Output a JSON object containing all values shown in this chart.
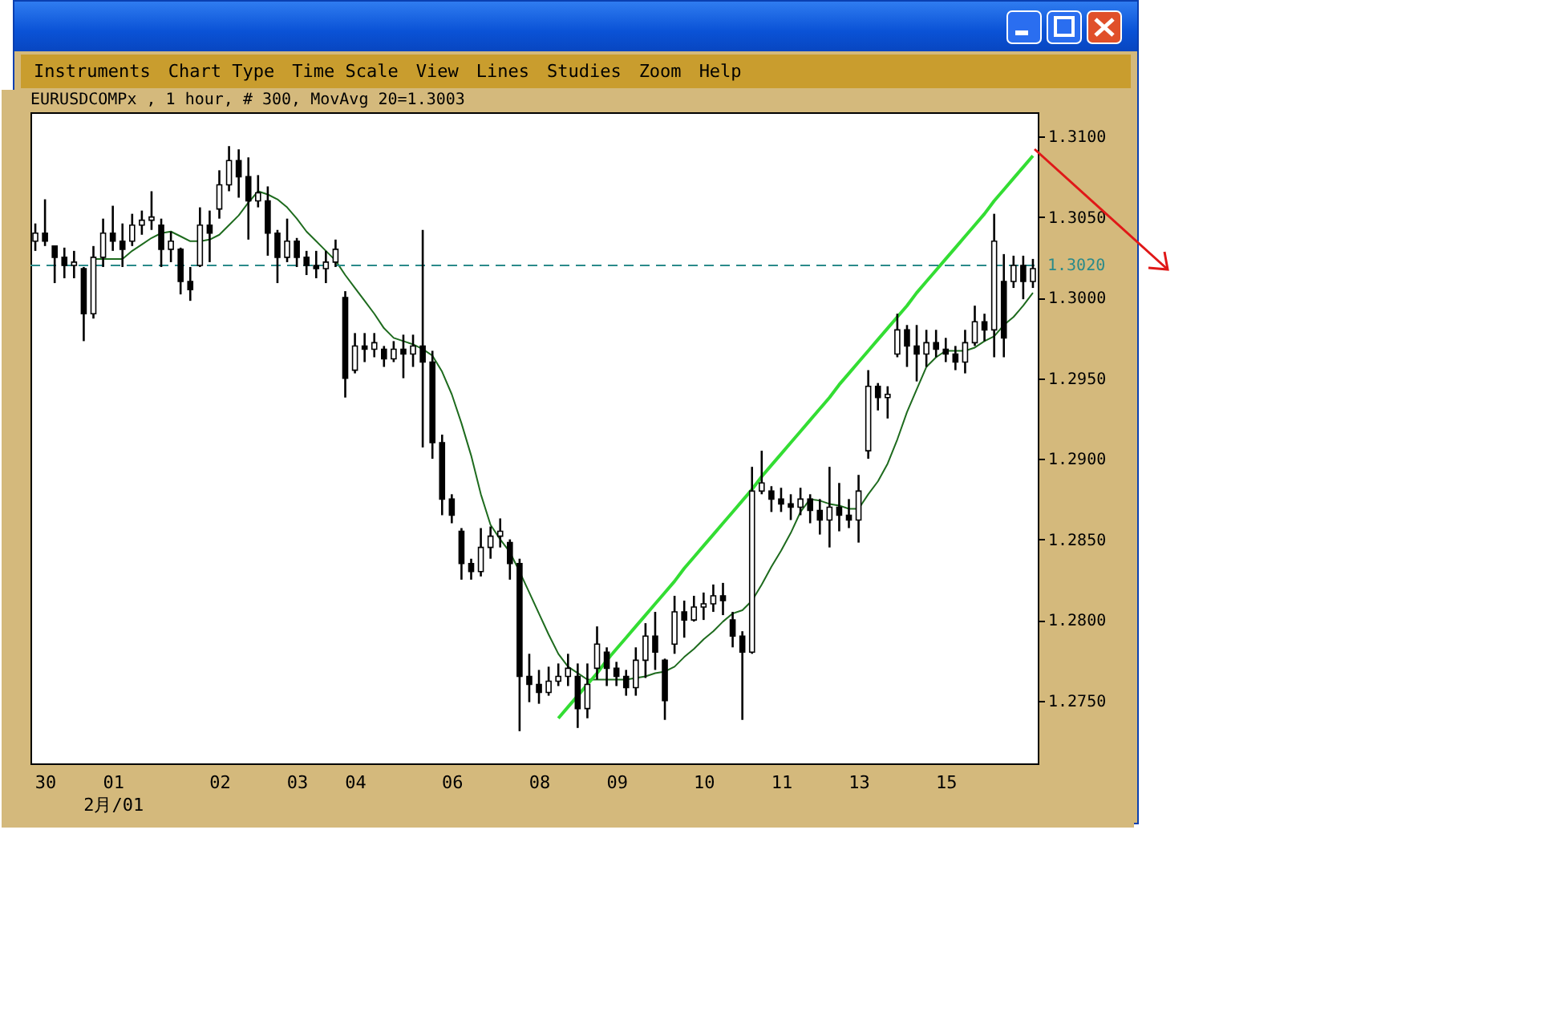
{
  "chart_data": {
    "type": "candlestick",
    "subtitle": "EURUSDCOMPx , 1 hour, # 300, MovAvg 20=1.3003",
    "annotations": [
      "Instruments",
      "Chart Type",
      "Time Scale",
      "View",
      "Lines",
      "Studies",
      "Zoom",
      "Help"
    ],
    "color": "#000000",
    "categories": [
      null,
      "30",
      null,
      null,
      null,
      null,
      null,
      null,
      "01\n2月/01",
      null,
      null,
      null,
      null,
      null,
      null,
      null,
      null,
      null,
      null,
      "02",
      null,
      null,
      null,
      null,
      null,
      null,
      null,
      "03",
      null,
      null,
      null,
      null,
      null,
      "04",
      null,
      null,
      null,
      null,
      null,
      null,
      null,
      null,
      null,
      "06",
      null,
      null,
      null,
      null,
      null,
      null,
      null,
      null,
      "08",
      null,
      null,
      null,
      null,
      null,
      null,
      null,
      "09",
      null,
      null,
      null,
      null,
      null,
      null,
      null,
      null,
      "10",
      null,
      null,
      null,
      null,
      null,
      null,
      null,
      "11",
      null,
      null,
      null,
      null,
      null,
      null,
      null,
      "13",
      null,
      null,
      null,
      null,
      null,
      null,
      null,
      null,
      "15",
      null,
      null,
      null,
      null,
      null,
      null,
      null,
      null,
      null
    ],
    "ohlc": [
      [
        1.3035,
        1.3046,
        1.3029,
        1.304
      ],
      [
        1.304,
        1.3061,
        1.3032,
        1.3035
      ],
      [
        1.3032,
        1.3032,
        1.3009,
        1.3025
      ],
      [
        1.3025,
        1.3031,
        1.3012,
        1.302
      ],
      [
        1.302,
        1.3029,
        1.3012,
        1.3022
      ],
      [
        1.3018,
        1.3019,
        1.2973,
        1.299
      ],
      [
        1.299,
        1.3032,
        1.2987,
        1.3025
      ],
      [
        1.3025,
        1.3049,
        1.3019,
        1.304
      ],
      [
        1.304,
        1.3057,
        1.3029,
        1.3035
      ],
      [
        1.3035,
        1.3046,
        1.3019,
        1.303
      ],
      [
        1.3035,
        1.3052,
        1.3032,
        1.3045
      ],
      [
        1.3045,
        1.3054,
        1.3039,
        1.3048
      ],
      [
        1.3048,
        1.3066,
        1.3042,
        1.305
      ],
      [
        1.3045,
        1.3049,
        1.3019,
        1.303
      ],
      [
        1.303,
        1.3041,
        1.3022,
        1.3035
      ],
      [
        1.303,
        1.3031,
        1.3002,
        1.301
      ],
      [
        1.301,
        1.3019,
        1.2998,
        1.3005
      ],
      [
        1.302,
        1.3056,
        1.3019,
        1.3045
      ],
      [
        1.3045,
        1.3054,
        1.3022,
        1.304
      ],
      [
        1.3055,
        1.3079,
        1.3049,
        1.307
      ],
      [
        1.307,
        1.3094,
        1.3066,
        1.3085
      ],
      [
        1.3085,
        1.3092,
        1.3062,
        1.3075
      ],
      [
        1.3075,
        1.3087,
        1.3036,
        1.306
      ],
      [
        1.306,
        1.3076,
        1.3056,
        1.3065
      ],
      [
        1.306,
        1.3069,
        1.3026,
        1.304
      ],
      [
        1.304,
        1.3042,
        1.3009,
        1.3025
      ],
      [
        1.3025,
        1.3049,
        1.3022,
        1.3035
      ],
      [
        1.3035,
        1.3037,
        1.3019,
        1.3025
      ],
      [
        1.3025,
        1.3029,
        1.3014,
        1.302
      ],
      [
        1.302,
        1.3029,
        1.3012,
        1.3018
      ],
      [
        1.3018,
        1.3029,
        1.3009,
        1.3022
      ],
      [
        1.3022,
        1.3036,
        1.3019,
        1.303
      ],
      [
        1.3,
        1.3004,
        1.2938,
        1.295
      ],
      [
        1.2955,
        1.2978,
        1.2953,
        1.297
      ],
      [
        1.297,
        1.2978,
        1.296,
        1.2968
      ],
      [
        1.2968,
        1.2978,
        1.2963,
        1.2972
      ],
      [
        1.2968,
        1.297,
        1.2957,
        1.2962
      ],
      [
        1.2962,
        1.2973,
        1.296,
        1.2968
      ],
      [
        1.2968,
        1.2977,
        1.295,
        1.2965
      ],
      [
        1.2965,
        1.2977,
        1.2957,
        1.297
      ],
      [
        1.297,
        1.3042,
        1.2907,
        1.296
      ],
      [
        1.296,
        1.2967,
        1.29,
        1.291
      ],
      [
        1.291,
        1.2915,
        1.2865,
        1.2875
      ],
      [
        1.2875,
        1.2878,
        1.286,
        1.2865
      ],
      [
        1.2855,
        1.2857,
        1.2825,
        1.2835
      ],
      [
        1.2835,
        1.2838,
        1.2825,
        1.283
      ],
      [
        1.283,
        1.2857,
        1.2827,
        1.2845
      ],
      [
        1.2845,
        1.2858,
        1.2838,
        1.2852
      ],
      [
        1.2852,
        1.2863,
        1.2845,
        1.2855
      ],
      [
        1.2848,
        1.285,
        1.2825,
        1.2835
      ],
      [
        1.2835,
        1.2838,
        1.2731,
        1.2765
      ],
      [
        1.2765,
        1.2779,
        1.2749,
        1.276
      ],
      [
        1.276,
        1.2769,
        1.2748,
        1.2755
      ],
      [
        1.2755,
        1.2771,
        1.2753,
        1.2762
      ],
      [
        1.2762,
        1.2773,
        1.2759,
        1.2765
      ],
      [
        1.2765,
        1.2779,
        1.2759,
        1.277
      ],
      [
        1.2765,
        1.2773,
        1.2733,
        1.2745
      ],
      [
        1.2745,
        1.2773,
        1.2739,
        1.276
      ],
      [
        1.277,
        1.2796,
        1.2763,
        1.2785
      ],
      [
        1.278,
        1.2783,
        1.2759,
        1.277
      ],
      [
        1.277,
        1.2774,
        1.2759,
        1.2765
      ],
      [
        1.2765,
        1.2769,
        1.2753,
        1.2758
      ],
      [
        1.2758,
        1.2783,
        1.2753,
        1.2775
      ],
      [
        1.2775,
        1.2798,
        1.2764,
        1.279
      ],
      [
        1.279,
        1.2805,
        1.2769,
        1.278
      ],
      [
        1.2775,
        1.2776,
        1.2738,
        1.275
      ],
      [
        1.2785,
        1.2815,
        1.2779,
        1.2805
      ],
      [
        1.2805,
        1.2812,
        1.2789,
        1.28
      ],
      [
        1.28,
        1.2815,
        1.2799,
        1.2808
      ],
      [
        1.2808,
        1.2817,
        1.28,
        1.281
      ],
      [
        1.281,
        1.2822,
        1.2805,
        1.2815
      ],
      [
        1.2815,
        1.2823,
        1.2803,
        1.2812
      ],
      [
        1.28,
        1.2805,
        1.2783,
        1.279
      ],
      [
        1.279,
        1.2793,
        1.2738,
        1.278
      ],
      [
        1.278,
        1.2895,
        1.2779,
        1.288
      ],
      [
        1.288,
        1.2905,
        1.2878,
        1.2885
      ],
      [
        1.288,
        1.2883,
        1.2867,
        1.2875
      ],
      [
        1.2875,
        1.2882,
        1.2867,
        1.2872
      ],
      [
        1.2872,
        1.2878,
        1.2862,
        1.287
      ],
      [
        1.287,
        1.2882,
        1.2865,
        1.2875
      ],
      [
        1.2875,
        1.2878,
        1.286,
        1.2868
      ],
      [
        1.2868,
        1.2875,
        1.2853,
        1.2862
      ],
      [
        1.2862,
        1.2895,
        1.2845,
        1.287
      ],
      [
        1.287,
        1.2885,
        1.2855,
        1.2865
      ],
      [
        1.2865,
        1.2875,
        1.2857,
        1.2862
      ],
      [
        1.2862,
        1.289,
        1.2848,
        1.288
      ],
      [
        1.2905,
        1.2955,
        1.29,
        1.2945
      ],
      [
        1.2945,
        1.2947,
        1.293,
        1.2938
      ],
      [
        1.2938,
        1.2945,
        1.2925,
        1.294
      ],
      [
        1.2965,
        1.299,
        1.2963,
        1.298
      ],
      [
        1.298,
        1.2983,
        1.2957,
        1.297
      ],
      [
        1.297,
        1.2983,
        1.2948,
        1.2965
      ],
      [
        1.2965,
        1.298,
        1.2957,
        1.2972
      ],
      [
        1.2972,
        1.298,
        1.2963,
        1.2968
      ],
      [
        1.2968,
        1.2975,
        1.296,
        1.2965
      ],
      [
        1.2965,
        1.297,
        1.2955,
        1.296
      ],
      [
        1.296,
        1.298,
        1.2953,
        1.2972
      ],
      [
        1.2972,
        1.2995,
        1.297,
        1.2985
      ],
      [
        1.2985,
        1.299,
        1.2973,
        1.298
      ],
      [
        1.298,
        1.3052,
        1.2963,
        1.3035
      ],
      [
        1.301,
        1.3027,
        1.2963,
        1.2975
      ],
      [
        1.301,
        1.3026,
        1.3006,
        1.302
      ],
      [
        1.302,
        1.3026,
        1.2999,
        1.301
      ],
      [
        1.301,
        1.3024,
        1.3006,
        1.3018
      ]
    ],
    "series": [
      {
        "type": "line",
        "color": "#1e6b1e",
        "values": [
          null,
          null,
          null,
          null,
          null,
          null,
          1.3024,
          1.3024,
          1.3024,
          1.3024,
          1.3029,
          1.3033,
          1.3037,
          1.304,
          1.3041,
          1.3038,
          1.3035,
          1.3035,
          1.3036,
          1.3039,
          1.3045,
          1.3051,
          1.3059,
          1.3066,
          1.3064,
          1.3061,
          1.3056,
          1.3049,
          1.3041,
          1.3035,
          1.3029,
          1.3023,
          1.3014,
          1.3006,
          1.2998,
          1.299,
          1.2981,
          1.2975,
          1.2973,
          1.2971,
          1.2968,
          1.2964,
          1.2954,
          1.294,
          1.2922,
          1.2902,
          1.2878,
          1.2859,
          1.285,
          1.2842,
          1.283,
          1.2817,
          1.2804,
          1.2791,
          1.2779,
          1.2771,
          1.2767,
          1.2763,
          1.2763,
          1.2763,
          1.2763,
          1.2763,
          1.2764,
          1.2765,
          1.2767,
          1.2768,
          1.2771,
          1.2777,
          1.2782,
          1.2788,
          1.2793,
          1.2799,
          1.2804,
          1.2806,
          1.2812,
          1.2822,
          1.2833,
          1.2843,
          1.2854,
          1.2867,
          1.2875,
          1.2874,
          1.2872,
          1.2871,
          1.2869,
          1.2869,
          1.2878,
          1.2886,
          1.2897,
          1.2912,
          1.2929,
          1.2943,
          1.2957,
          1.2963,
          1.2967,
          1.2967,
          1.2967,
          1.2969,
          1.2973,
          1.2976,
          1.2983,
          1.2988,
          1.2995,
          1.3003
        ]
      },
      {
        "type": "line",
        "color": "#33dd33",
        "values": [
          null,
          null,
          null,
          null,
          null,
          null,
          null,
          null,
          null,
          null,
          null,
          null,
          null,
          null,
          null,
          null,
          null,
          null,
          null,
          null,
          null,
          null,
          null,
          null,
          null,
          null,
          null,
          null,
          null,
          null,
          null,
          null,
          null,
          null,
          null,
          null,
          null,
          null,
          null,
          null,
          null,
          null,
          null,
          null,
          null,
          null,
          null,
          null,
          null,
          null,
          null,
          null,
          null,
          null,
          1.2739,
          1.2746,
          1.2753,
          1.276,
          1.2767,
          1.2775,
          1.2782,
          1.2789,
          1.2796,
          1.2803,
          1.281,
          1.2817,
          1.2824,
          1.2832,
          1.2839,
          1.2846,
          1.2853,
          1.286,
          1.2867,
          1.2874,
          1.2881,
          1.2889,
          1.2896,
          1.2903,
          1.291,
          1.2917,
          1.2924,
          1.2931,
          1.2938,
          1.2946,
          1.2953,
          1.296,
          1.2967,
          1.2974,
          1.2981,
          1.2988,
          1.2995,
          1.3003,
          1.301,
          1.3017,
          1.3024,
          1.3031,
          1.3038,
          1.3045,
          1.3052,
          1.306,
          1.3067,
          1.3074,
          1.3081,
          1.3088
        ]
      }
    ],
    "ylim": [
      1.2711,
      1.3115
    ],
    "yticks": [
      {
        "value": 1.31,
        "label": "1.3100"
      },
      {
        "value": 1.305,
        "label": "1.3050"
      },
      {
        "value": 1.3,
        "label": "1.3000"
      },
      {
        "value": 1.295,
        "label": "1.2950"
      },
      {
        "value": 1.29,
        "label": "1.2900"
      },
      {
        "value": 1.285,
        "label": "1.2850"
      },
      {
        "value": 1.28,
        "label": "1.2800"
      },
      {
        "value": 1.275,
        "label": "1.2750"
      }
    ],
    "ref_lines": [
      {
        "axis": "y",
        "value": 1.302,
        "label": "1.3020",
        "color": "#2a8a8a",
        "line_style": "dashed"
      }
    ]
  }
}
